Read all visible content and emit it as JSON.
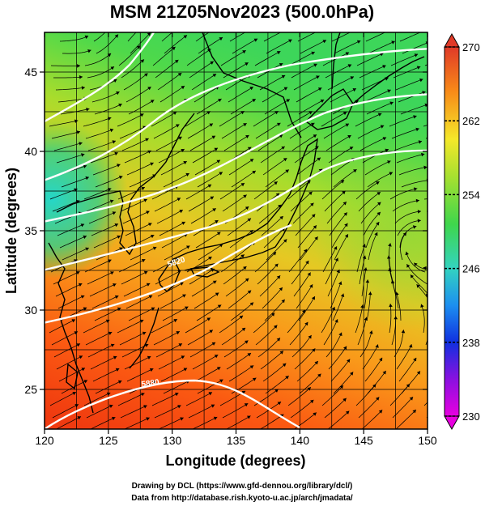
{
  "title": "MSM 21Z05Nov2023 (500.0hPa)",
  "xlabel": "Longitude (degrees)",
  "ylabel": "Latitude  (degrees)",
  "x_ticks": [
    "120",
    "125",
    "130",
    "135",
    "140",
    "145",
    "150"
  ],
  "y_ticks": [
    "25",
    "30",
    "35",
    "40",
    "45"
  ],
  "colorbar_ticks": [
    "270",
    "262",
    "254",
    "246",
    "238",
    "230"
  ],
  "footer": {
    "line1": "Drawing by DCL (https://www.gfd-dennou.org/library/dcl/)",
    "line2": "Data from http://database.rish.kyoto-u.ac.jp/arch/jmadata/"
  },
  "contour_labels": [
    "5820",
    "5880"
  ],
  "colors": {
    "cb_top": "#e03a28",
    "cb_bottom": "#e800e0",
    "contour": "#ffffff",
    "stream": "#000000"
  },
  "chart_data": {
    "type": "heatmap",
    "x_range": [
      120,
      150
    ],
    "y_range": [
      22.5,
      47.5
    ],
    "colorbar_range": [
      230,
      270
    ],
    "grid": true
  }
}
